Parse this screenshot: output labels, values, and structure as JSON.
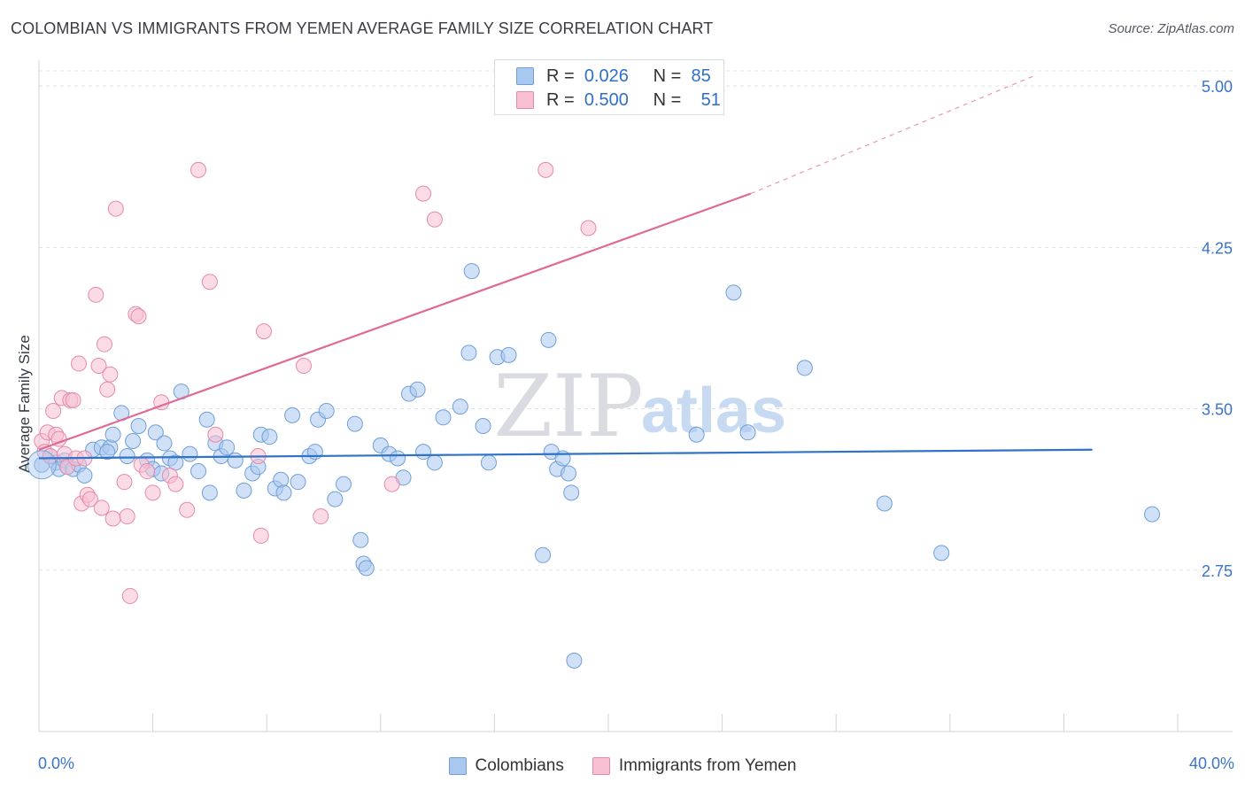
{
  "header": {
    "title": "COLOMBIAN VS IMMIGRANTS FROM YEMEN AVERAGE FAMILY SIZE CORRELATION CHART",
    "source": "Source: ZipAtlas.com"
  },
  "watermark": {
    "zip": "ZIP",
    "atlas": "atlas"
  },
  "stats": [
    {
      "r_label": "R =",
      "r_value": "0.026",
      "n_label": "N =",
      "n_value": "85",
      "color": "#a9c8f0",
      "border": "#6f9fd8"
    },
    {
      "r_label": "R =",
      "r_value": "0.500",
      "n_label": "N =",
      "n_value": "51",
      "color": "#f7bfd1",
      "border": "#e68aa8"
    }
  ],
  "legend": [
    {
      "label": "Colombians",
      "color": "#a9c8f0",
      "border": "#6f9fd8"
    },
    {
      "label": "Immigrants from Yemen",
      "color": "#f7bfd1",
      "border": "#e68aa8"
    }
  ],
  "axis": {
    "x_min_label": "0.0%",
    "x_max_label": "40.0%",
    "y_label": "Average Family Size"
  },
  "chart_data": {
    "type": "scatter",
    "title": "COLOMBIAN VS IMMIGRANTS FROM YEMEN AVERAGE FAMILY SIZE CORRELATION CHART",
    "xlabel": "",
    "ylabel": "Average Family Size",
    "xlim": [
      0,
      40
    ],
    "ylim": [
      2.0,
      5.12
    ],
    "y_ticks": [
      2.75,
      3.5,
      4.25,
      5.0
    ],
    "y_tick_labels": [
      "2.75",
      "3.50",
      "4.25",
      "5.00"
    ],
    "x_tick_labels": [
      "0.0%",
      "40.0%"
    ],
    "x_minor_ticks": [
      0,
      4,
      8,
      12,
      16,
      20,
      24,
      28,
      32,
      36,
      40
    ],
    "grid": true,
    "series": [
      {
        "name": "Colombians",
        "color": "#6f9fd8",
        "fill": "#a9c8f0",
        "r": 0.026,
        "n": 85,
        "trend": {
          "x0": 0,
          "y0": 3.27,
          "x1": 37,
          "y1": 3.31,
          "dashed_to": null
        },
        "points": [
          [
            0.1,
            3.24
          ],
          [
            0.4,
            3.28
          ],
          [
            0.6,
            3.25
          ],
          [
            0.7,
            3.22
          ],
          [
            0.9,
            3.26
          ],
          [
            1.0,
            3.23
          ],
          [
            1.2,
            3.22
          ],
          [
            1.4,
            3.24
          ],
          [
            1.9,
            3.31
          ],
          [
            2.2,
            3.32
          ],
          [
            2.5,
            3.32
          ],
          [
            2.6,
            3.38
          ],
          [
            2.9,
            3.48
          ],
          [
            3.1,
            3.28
          ],
          [
            3.3,
            3.35
          ],
          [
            3.5,
            3.42
          ],
          [
            3.8,
            3.26
          ],
          [
            4.0,
            3.22
          ],
          [
            4.1,
            3.39
          ],
          [
            4.3,
            3.2
          ],
          [
            4.4,
            3.34
          ],
          [
            4.6,
            3.27
          ],
          [
            4.8,
            3.25
          ],
          [
            5.0,
            3.58
          ],
          [
            5.3,
            3.29
          ],
          [
            5.6,
            3.21
          ],
          [
            5.9,
            3.45
          ],
          [
            6.0,
            3.11
          ],
          [
            6.2,
            3.34
          ],
          [
            6.4,
            3.28
          ],
          [
            6.6,
            3.32
          ],
          [
            6.9,
            3.26
          ],
          [
            7.2,
            3.12
          ],
          [
            7.5,
            3.2
          ],
          [
            7.7,
            3.23
          ],
          [
            7.8,
            3.38
          ],
          [
            8.1,
            3.37
          ],
          [
            8.3,
            3.13
          ],
          [
            8.5,
            3.17
          ],
          [
            8.6,
            3.11
          ],
          [
            8.9,
            3.47
          ],
          [
            9.1,
            3.16
          ],
          [
            9.5,
            3.28
          ],
          [
            9.7,
            3.3
          ],
          [
            9.8,
            3.45
          ],
          [
            10.1,
            3.49
          ],
          [
            10.4,
            3.08
          ],
          [
            10.7,
            3.15
          ],
          [
            11.1,
            3.43
          ],
          [
            11.3,
            2.89
          ],
          [
            11.4,
            2.78
          ],
          [
            11.5,
            2.76
          ],
          [
            12.0,
            3.33
          ],
          [
            12.3,
            3.29
          ],
          [
            12.6,
            3.27
          ],
          [
            12.8,
            3.18
          ],
          [
            13.0,
            3.57
          ],
          [
            13.3,
            3.59
          ],
          [
            13.5,
            3.3
          ],
          [
            13.9,
            3.25
          ],
          [
            14.2,
            3.46
          ],
          [
            14.8,
            3.51
          ],
          [
            15.1,
            3.76
          ],
          [
            15.2,
            4.14
          ],
          [
            15.6,
            3.42
          ],
          [
            15.8,
            3.25
          ],
          [
            16.1,
            3.74
          ],
          [
            16.5,
            3.75
          ],
          [
            17.7,
            2.82
          ],
          [
            17.9,
            3.82
          ],
          [
            18.8,
            2.33
          ],
          [
            18.0,
            3.3
          ],
          [
            18.2,
            3.22
          ],
          [
            18.4,
            3.27
          ],
          [
            18.6,
            3.2
          ],
          [
            18.7,
            3.11
          ],
          [
            23.1,
            3.38
          ],
          [
            24.4,
            4.04
          ],
          [
            24.9,
            3.39
          ],
          [
            26.9,
            3.69
          ],
          [
            29.7,
            3.06
          ],
          [
            31.7,
            2.83
          ],
          [
            39.1,
            3.01
          ],
          [
            1.6,
            3.19
          ],
          [
            2.4,
            3.3
          ]
        ]
      },
      {
        "name": "Immigrants from Yemen",
        "color": "#e68aa8",
        "fill": "#f7bfd1",
        "r": 0.5,
        "n": 51,
        "trend": {
          "x0": 0,
          "y0": 3.31,
          "x1": 25,
          "y1": 4.5,
          "dashed_to": [
            35,
            5.05
          ]
        },
        "points": [
          [
            0.1,
            3.35
          ],
          [
            0.2,
            3.3
          ],
          [
            0.3,
            3.39
          ],
          [
            0.4,
            3.28
          ],
          [
            0.5,
            3.49
          ],
          [
            0.6,
            3.38
          ],
          [
            0.7,
            3.36
          ],
          [
            0.8,
            3.55
          ],
          [
            0.9,
            3.29
          ],
          [
            1.0,
            3.23
          ],
          [
            1.1,
            3.54
          ],
          [
            1.2,
            3.54
          ],
          [
            1.3,
            3.27
          ],
          [
            1.4,
            3.71
          ],
          [
            1.5,
            3.06
          ],
          [
            1.6,
            3.27
          ],
          [
            1.7,
            3.1
          ],
          [
            1.8,
            3.08
          ],
          [
            2.0,
            4.03
          ],
          [
            2.1,
            3.7
          ],
          [
            2.2,
            3.04
          ],
          [
            2.3,
            3.8
          ],
          [
            2.4,
            3.59
          ],
          [
            2.5,
            3.66
          ],
          [
            2.6,
            2.99
          ],
          [
            2.7,
            4.43
          ],
          [
            3.0,
            3.16
          ],
          [
            3.1,
            3.0
          ],
          [
            3.2,
            2.63
          ],
          [
            3.4,
            3.94
          ],
          [
            3.5,
            3.93
          ],
          [
            3.6,
            3.24
          ],
          [
            3.8,
            3.21
          ],
          [
            4.0,
            3.11
          ],
          [
            4.3,
            3.53
          ],
          [
            4.6,
            3.19
          ],
          [
            4.8,
            3.15
          ],
          [
            5.2,
            3.03
          ],
          [
            5.6,
            4.61
          ],
          [
            6.0,
            4.09
          ],
          [
            6.2,
            3.38
          ],
          [
            7.7,
            3.28
          ],
          [
            7.8,
            2.91
          ],
          [
            7.9,
            3.86
          ],
          [
            9.3,
            3.7
          ],
          [
            9.9,
            3.0
          ],
          [
            12.4,
            3.15
          ],
          [
            13.5,
            4.5
          ],
          [
            13.9,
            4.38
          ],
          [
            17.8,
            4.61
          ],
          [
            19.3,
            4.34
          ]
        ]
      }
    ]
  }
}
